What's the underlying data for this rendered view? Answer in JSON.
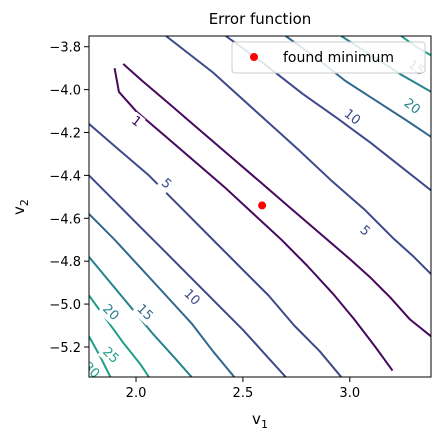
{
  "chart_data": {
    "type": "contour",
    "title": "Error function",
    "xlabel": "v",
    "xlabel_sub": "1",
    "ylabel": "v",
    "ylabel_sub": "2",
    "xlim": [
      1.78,
      3.38
    ],
    "ylim": [
      -5.34,
      -3.75
    ],
    "xticks": [
      2.0,
      2.5,
      3.0
    ],
    "xtick_labels": [
      "2.0",
      "2.5",
      "3.0"
    ],
    "yticks": [
      -3.8,
      -4.0,
      -4.2,
      -4.4,
      -4.6,
      -4.8,
      -5.0,
      -5.2
    ],
    "ytick_labels": [
      "−3.8",
      "−4.0",
      "−4.2",
      "−4.4",
      "−4.6",
      "−4.8",
      "−5.0",
      "−5.2"
    ],
    "grid": false,
    "legend_position": "top-right",
    "minimum": {
      "name": "found minimum",
      "x": 2.59,
      "y": -4.54,
      "color": "#ff0000"
    },
    "contour_levels": [
      {
        "level": 1,
        "color": "#46085c",
        "paths": [
          [
            [
              1.94,
              -3.88
            ],
            [
              2.03,
              -3.96
            ],
            [
              2.16,
              -4.07
            ],
            [
              2.3,
              -4.19
            ],
            [
              2.44,
              -4.31
            ],
            [
              2.58,
              -4.43
            ],
            [
              2.72,
              -4.55
            ],
            [
              2.86,
              -4.67
            ],
            [
              3.0,
              -4.79
            ],
            [
              3.1,
              -4.88
            ],
            [
              3.19,
              -4.97
            ],
            [
              3.28,
              -5.07
            ],
            [
              3.38,
              -5.15
            ]
          ],
          [
            [
              1.9,
              -3.9
            ],
            [
              1.92,
              -4.01
            ],
            [
              2.0,
              -4.1
            ],
            [
              2.14,
              -4.22
            ],
            [
              2.28,
              -4.34
            ],
            [
              2.42,
              -4.46
            ],
            [
              2.55,
              -4.58
            ],
            [
              2.68,
              -4.7
            ],
            [
              2.8,
              -4.82
            ],
            [
              2.92,
              -4.95
            ],
            [
              3.02,
              -5.07
            ],
            [
              3.12,
              -5.2
            ],
            [
              3.2,
              -5.31
            ]
          ]
        ]
      },
      {
        "level": 5,
        "color": "#3e4989",
        "paths": [
          [
            [
              2.14,
              -3.75
            ],
            [
              2.36,
              -3.92
            ],
            [
              2.56,
              -4.1
            ],
            [
              2.76,
              -4.28
            ],
            [
              2.92,
              -4.43
            ],
            [
              3.07,
              -4.56
            ],
            [
              3.2,
              -4.69
            ],
            [
              3.3,
              -4.78
            ],
            [
              3.38,
              -4.86
            ]
          ],
          [
            [
              1.78,
              -4.16
            ],
            [
              1.92,
              -4.28
            ],
            [
              2.06,
              -4.4
            ],
            [
              2.2,
              -4.54
            ],
            [
              2.34,
              -4.68
            ],
            [
              2.48,
              -4.82
            ],
            [
              2.62,
              -4.96
            ],
            [
              2.74,
              -5.1
            ],
            [
              2.86,
              -5.22
            ],
            [
              2.96,
              -5.34
            ]
          ]
        ]
      },
      {
        "level": 10,
        "color": "#3e4989",
        "paths": [
          [
            [
              2.42,
              -3.75
            ],
            [
              2.6,
              -3.88
            ],
            [
              2.78,
              -4.02
            ],
            [
              2.95,
              -4.14
            ],
            [
              3.1,
              -4.25
            ],
            [
              3.24,
              -4.36
            ],
            [
              3.38,
              -4.47
            ]
          ],
          [
            [
              1.78,
              -4.4
            ],
            [
              1.9,
              -4.52
            ],
            [
              2.02,
              -4.64
            ],
            [
              2.14,
              -4.76
            ],
            [
              2.26,
              -4.88
            ],
            [
              2.38,
              -5.0
            ],
            [
              2.5,
              -5.12
            ],
            [
              2.6,
              -5.23
            ],
            [
              2.7,
              -5.34
            ]
          ]
        ]
      },
      {
        "level": 15,
        "color": "#31688e",
        "paths": [
          [
            [
              2.7,
              -3.75
            ],
            [
              2.84,
              -3.85
            ],
            [
              2.98,
              -3.96
            ],
            [
              3.12,
              -4.05
            ],
            [
              3.26,
              -4.14
            ],
            [
              3.38,
              -4.22
            ]
          ],
          [
            [
              1.78,
              -4.58
            ],
            [
              1.9,
              -4.7
            ],
            [
              2.02,
              -4.83
            ],
            [
              2.14,
              -4.96
            ],
            [
              2.26,
              -5.09
            ],
            [
              2.36,
              -5.22
            ],
            [
              2.46,
              -5.34
            ]
          ]
        ]
      },
      {
        "level": 20,
        "color": "#26828e",
        "paths": [
          [
            [
              2.96,
              -3.75
            ],
            [
              3.1,
              -3.84
            ],
            [
              3.24,
              -3.93
            ],
            [
              3.38,
              -4.01
            ]
          ],
          [
            [
              1.78,
              -4.78
            ],
            [
              1.88,
              -4.9
            ],
            [
              1.98,
              -5.02
            ],
            [
              2.08,
              -5.14
            ],
            [
              2.18,
              -5.25
            ],
            [
              2.26,
              -5.34
            ]
          ]
        ]
      },
      {
        "level": 25,
        "color": "#1f9e89",
        "paths": [
          [
            [
              3.24,
              -3.75
            ],
            [
              3.31,
              -3.8
            ],
            [
              3.38,
              -3.84
            ]
          ],
          [
            [
              1.78,
              -4.96
            ],
            [
              1.86,
              -5.07
            ],
            [
              1.94,
              -5.18
            ],
            [
              2.02,
              -5.28
            ],
            [
              2.06,
              -5.34
            ]
          ]
        ]
      },
      {
        "level": 30,
        "color": "#1f9e89",
        "paths": [
          [
            [
              1.78,
              -5.15
            ],
            [
              1.83,
              -5.24
            ],
            [
              1.88,
              -5.34
            ]
          ]
        ]
      }
    ],
    "contour_labels": [
      {
        "text": "1",
        "x": 2.0,
        "y": -4.15,
        "color": "#46085c",
        "angle": 38
      },
      {
        "text": "5",
        "x": 2.14,
        "y": -4.44,
        "color": "#3e4989",
        "angle": 42
      },
      {
        "text": "5",
        "x": 3.07,
        "y": -4.66,
        "color": "#3e4989",
        "angle": 42
      },
      {
        "text": "10",
        "x": 3.01,
        "y": -4.13,
        "color": "#3e4989",
        "angle": 38
      },
      {
        "text": "10",
        "x": 2.26,
        "y": -4.97,
        "color": "#3e4989",
        "angle": 44
      },
      {
        "text": "15",
        "x": 2.04,
        "y": -5.04,
        "color": "#31688e",
        "angle": 44
      },
      {
        "text": "20",
        "x": 3.29,
        "y": -4.08,
        "color": "#26828e",
        "angle": 38
      },
      {
        "text": "20",
        "x": 1.88,
        "y": -5.04,
        "color": "#26828e",
        "angle": 44
      },
      {
        "text": "25",
        "x": 1.88,
        "y": -5.24,
        "color": "#1f9e89",
        "angle": 44
      },
      {
        "text": "30",
        "x": 1.79,
        "y": -5.31,
        "color": "#1f9e89",
        "angle": 44
      },
      {
        "text": "15",
        "x": 3.31,
        "y": -3.9,
        "color": "#31688e",
        "angle": 36
      }
    ]
  }
}
